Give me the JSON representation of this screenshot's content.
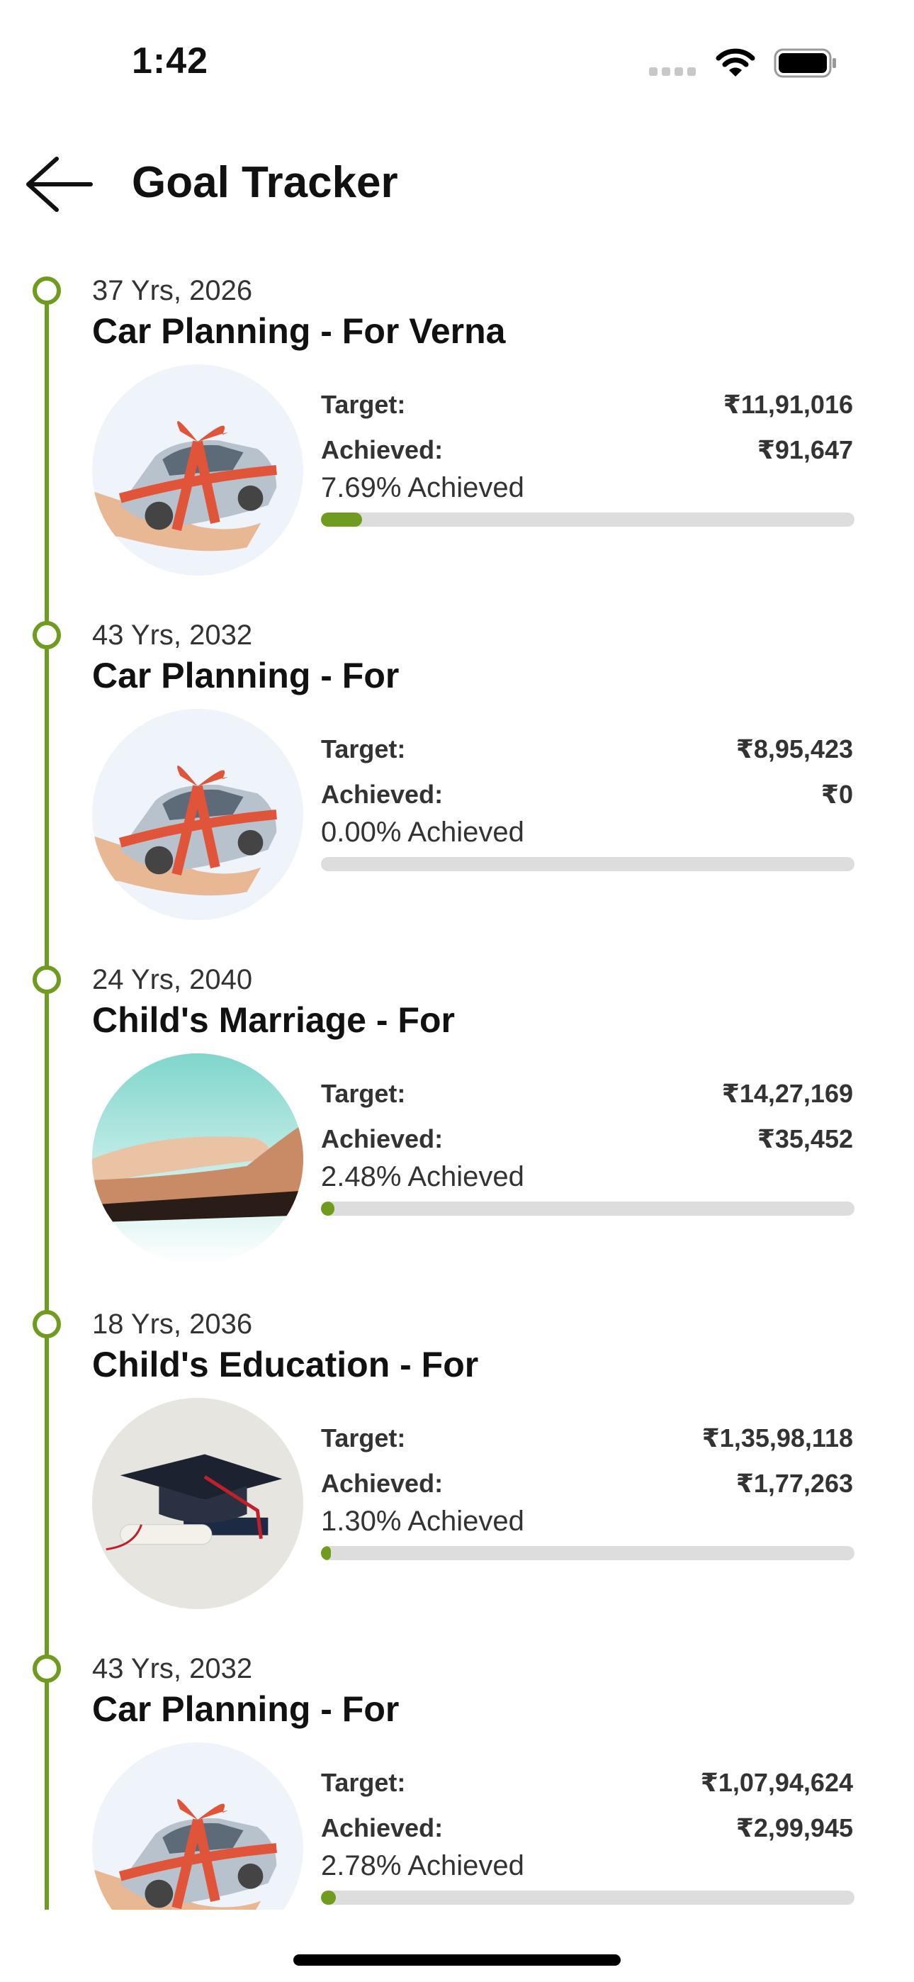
{
  "status_bar": {
    "time": "1:42"
  },
  "header": {
    "title": "Goal Tracker",
    "back_icon": "arrow-left-icon"
  },
  "colors": {
    "accent": "#6f9c1e",
    "track": "#dddddd"
  },
  "labels": {
    "target": "Target:",
    "achieved": "Achieved:"
  },
  "goals": [
    {
      "subtitle": "37 Yrs, 2026",
      "title": "Car Planning - For Verna",
      "target": "₹11,91,016",
      "achieved": "₹91,647",
      "percent_text": "7.69% Achieved",
      "progress": 7.69,
      "image": "car"
    },
    {
      "subtitle": "43 Yrs, 2032",
      "title": "Car Planning - For",
      "target": "₹8,95,423",
      "achieved": "₹0",
      "percent_text": "0.00% Achieved",
      "progress": 0,
      "image": "car"
    },
    {
      "subtitle": "24 Yrs, 2040",
      "title": "Child's Marriage - For",
      "target": "₹14,27,169",
      "achieved": "₹35,452",
      "percent_text": "2.48% Achieved",
      "progress": 2.48,
      "image": "hands"
    },
    {
      "subtitle": "18 Yrs, 2036",
      "title": "Child's Education - For",
      "target": "₹1,35,98,118",
      "achieved": "₹1,77,263",
      "percent_text": "1.30% Achieved",
      "progress": 1.3,
      "image": "graduation"
    },
    {
      "subtitle": "43 Yrs, 2032",
      "title": "Car Planning - For",
      "target": "₹1,07,94,624",
      "achieved": "₹2,99,945",
      "percent_text": "2.78% Achieved",
      "progress": 2.78,
      "image": "car"
    }
  ]
}
